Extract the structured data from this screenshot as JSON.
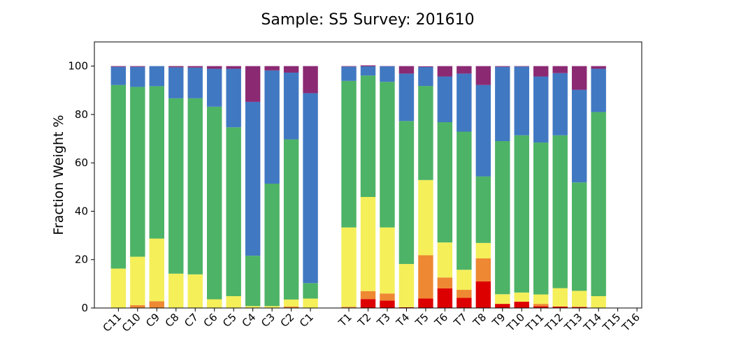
{
  "chart_data": {
    "type": "bar",
    "stacked": true,
    "title": "Sample: S5  Survey: 201610",
    "xlabel": "",
    "ylabel": "Fraction Weight %",
    "ylim": [
      0,
      110
    ],
    "yticks": [
      0,
      20,
      40,
      60,
      80,
      100
    ],
    "grid": false,
    "legend": "none",
    "categories": [
      "C11",
      "C10",
      "C9",
      "C8",
      "C7",
      "C6",
      "C5",
      "C4",
      "C3",
      "C2",
      "C1",
      "",
      "T1",
      "T2",
      "T3",
      "T4",
      "T5",
      "T6",
      "T7",
      "T8",
      "T9",
      "T10",
      "T11",
      "T12",
      "T13",
      "T14",
      "T15",
      "T16"
    ],
    "series": [
      {
        "color": "#dd0000",
        "values": [
          0,
          0,
          0,
          0,
          0,
          0,
          0,
          0,
          0,
          0,
          0,
          0,
          0,
          3.7,
          3.1,
          0.3,
          3.9,
          8.1,
          4.2,
          11,
          1.7,
          2.6,
          0.7,
          0.6,
          0.3,
          0,
          0,
          0
        ]
      },
      {
        "color": "#ee8833",
        "values": [
          0,
          1.2,
          2.8,
          0,
          0,
          0,
          0,
          0,
          0,
          0.6,
          0,
          0,
          0.5,
          3.3,
          2.9,
          0,
          17.9,
          4.5,
          3.3,
          9.5,
          0,
          0,
          1,
          0,
          0.3,
          0,
          0,
          0
        ]
      },
      {
        "color": "#f5ef5a",
        "values": [
          16.3,
          20,
          25.9,
          14.2,
          13.9,
          3.6,
          4.9,
          0.8,
          0.8,
          2.9,
          3.9,
          0,
          32.8,
          38.9,
          27.3,
          17.9,
          31.1,
          14.5,
          8.3,
          6.4,
          4,
          3.8,
          3.9,
          7.6,
          6.5,
          4.9,
          0,
          0
        ]
      },
      {
        "color": "#4db366",
        "values": [
          75.9,
          70.2,
          63,
          72.5,
          72.8,
          79.6,
          69.8,
          20.8,
          50.6,
          66.2,
          6.4,
          0,
          60.6,
          50.2,
          60.2,
          59.1,
          38.9,
          49.7,
          57.1,
          27.5,
          63.3,
          65,
          62.8,
          63.2,
          44.8,
          76.1,
          0,
          0
        ]
      },
      {
        "color": "#4178c2",
        "values": [
          7.5,
          8.3,
          8.3,
          12.8,
          12.7,
          15.7,
          24.2,
          63.6,
          46.8,
          27.6,
          78.5,
          0,
          5.9,
          3.8,
          6.4,
          19.6,
          7.8,
          18.9,
          24,
          37.8,
          30.7,
          28.4,
          27.3,
          25.7,
          38.3,
          17.9,
          0,
          0
        ]
      },
      {
        "color": "#8b2a73",
        "values": [
          0.3,
          0.3,
          0,
          0.5,
          0.6,
          1.1,
          1.1,
          14.8,
          1.8,
          2.7,
          11.2,
          0,
          0.2,
          0.4,
          0.1,
          3.1,
          0.3,
          4.3,
          3.1,
          7.8,
          0.3,
          0.2,
          4.3,
          2.9,
          9.8,
          1.1,
          0,
          0
        ]
      }
    ]
  }
}
